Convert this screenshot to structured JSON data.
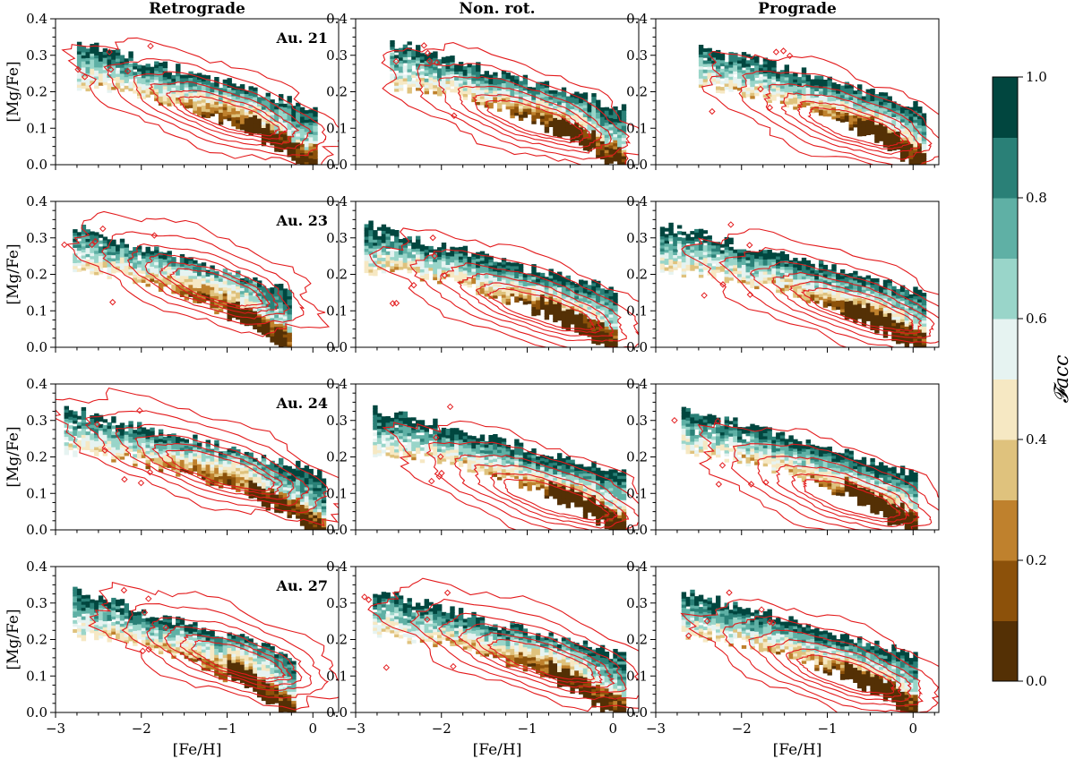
{
  "chart_data": {
    "type": "heatmap",
    "column_titles": [
      "Retrograde",
      "Non. rot.",
      "Prograde"
    ],
    "row_labels": [
      "Au. 21",
      "Au. 23",
      "Au. 24",
      "Au. 27"
    ],
    "xlabel": "[Fe/H]",
    "ylabel": "[Mg/Fe]",
    "xlim": [
      -3,
      0.3
    ],
    "ylim": [
      0.0,
      0.4
    ],
    "xticks": [
      -3,
      -2,
      -1,
      0
    ],
    "xtick_labels": [
      "−3",
      "−2",
      "−1",
      "0"
    ],
    "yticks": [
      0.0,
      0.1,
      0.2,
      0.3,
      0.4
    ],
    "ytick_labels": [
      "0.0",
      "0.1",
      "0.2",
      "0.3",
      "0.4"
    ],
    "colorbar": {
      "label": "𝓕acc",
      "range": [
        0.0,
        1.0
      ],
      "ticks": [
        0.0,
        0.2,
        0.4,
        0.6,
        0.8,
        1.0
      ],
      "tick_labels": [
        "0.0",
        "0.2",
        "0.4",
        "0.6",
        "0.8",
        "1.0"
      ],
      "bins": 10,
      "colors": [
        "#543005",
        "#8c510a",
        "#bf812d",
        "#dfc27d",
        "#f6e8c3",
        "#e6f3f1",
        "#99d5c9",
        "#5fb0a5",
        "#2a8077",
        "#01463f"
      ]
    },
    "contour_color": "#e31a1c",
    "panels": [
      {
        "row": 0,
        "col": 0,
        "label": "Au. 21",
        "feh_span": [
          -2.75,
          0.0
        ],
        "center": [
          -0.95,
          0.13
        ]
      },
      {
        "row": 0,
        "col": 1,
        "label": "",
        "feh_span": [
          -2.6,
          0.1
        ],
        "center": [
          -0.9,
          0.12
        ]
      },
      {
        "row": 0,
        "col": 2,
        "label": "",
        "feh_span": [
          -2.5,
          0.1
        ],
        "center": [
          -0.65,
          0.1
        ]
      },
      {
        "row": 1,
        "col": 0,
        "label": "Au. 23",
        "feh_span": [
          -2.8,
          -0.3
        ],
        "center": [
          -1.1,
          0.16
        ]
      },
      {
        "row": 1,
        "col": 1,
        "label": "",
        "feh_span": [
          -2.9,
          0.0
        ],
        "center": [
          -0.8,
          0.1
        ]
      },
      {
        "row": 1,
        "col": 2,
        "label": "",
        "feh_span": [
          -2.95,
          0.1
        ],
        "center": [
          -0.6,
          0.1
        ]
      },
      {
        "row": 2,
        "col": 0,
        "label": "Au. 24",
        "feh_span": [
          -2.9,
          0.1
        ],
        "center": [
          -1.05,
          0.16
        ]
      },
      {
        "row": 2,
        "col": 1,
        "label": "",
        "feh_span": [
          -2.8,
          0.1
        ],
        "center": [
          -0.65,
          0.08
        ]
      },
      {
        "row": 2,
        "col": 2,
        "label": "",
        "feh_span": [
          -2.7,
          0.0
        ],
        "center": [
          -0.7,
          0.08
        ]
      },
      {
        "row": 3,
        "col": 0,
        "label": "Au. 27",
        "feh_span": [
          -2.8,
          -0.25
        ],
        "center": [
          -0.85,
          0.14
        ]
      },
      {
        "row": 3,
        "col": 1,
        "label": "",
        "feh_span": [
          -2.8,
          0.1
        ],
        "center": [
          -0.8,
          0.14
        ]
      },
      {
        "row": 3,
        "col": 2,
        "label": "",
        "feh_span": [
          -2.7,
          0.0
        ],
        "center": [
          -0.75,
          0.1
        ]
      }
    ]
  }
}
